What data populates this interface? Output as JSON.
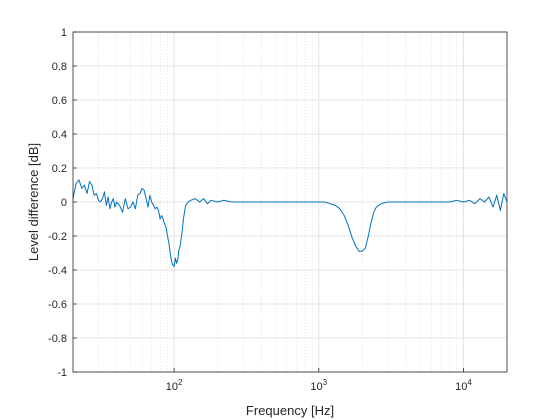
{
  "chart_data": {
    "type": "line",
    "title": "",
    "xlabel": "Frequency [Hz]",
    "ylabel": "Level difference [dB]",
    "xscale": "log",
    "xlim": [
      20,
      20000
    ],
    "ylim": [
      -1,
      1
    ],
    "grid": true,
    "minor_grid_x": true,
    "yticks": [
      {
        "value": 1,
        "label": "1"
      },
      {
        "value": 0.8,
        "label": "0.8"
      },
      {
        "value": 0.6,
        "label": "0.6"
      },
      {
        "value": 0.4,
        "label": "0.4"
      },
      {
        "value": 0.2,
        "label": "0.2"
      },
      {
        "value": 0,
        "label": "0"
      },
      {
        "value": -0.2,
        "label": "-0.2"
      },
      {
        "value": -0.4,
        "label": "-0.4"
      },
      {
        "value": -0.6,
        "label": "-0.6"
      },
      {
        "value": -0.8,
        "label": "-0.8"
      },
      {
        "value": -1,
        "label": "-1"
      }
    ],
    "xticks": [
      {
        "value": 100,
        "base": "10",
        "exp": "2"
      },
      {
        "value": 1000,
        "base": "10",
        "exp": "3"
      },
      {
        "value": 10000,
        "base": "10",
        "exp": "4"
      }
    ],
    "line_color": "#0072BD",
    "series": [
      {
        "x": [
          20,
          21,
          22,
          23,
          24,
          25,
          26,
          27,
          28,
          29,
          30,
          31,
          32,
          33,
          34,
          35,
          36,
          37,
          38,
          39,
          40,
          42,
          44,
          46,
          48,
          50,
          52,
          54,
          56,
          58,
          60,
          62,
          64,
          66,
          68,
          70,
          72,
          74,
          76,
          78,
          80,
          82,
          84,
          86,
          88,
          90,
          92,
          94,
          96,
          98,
          100,
          102,
          104,
          106,
          108,
          110,
          113,
          116,
          120,
          125,
          130,
          140,
          150,
          160,
          170,
          180,
          200,
          220,
          250,
          280,
          300,
          350,
          400,
          450,
          500,
          600,
          700,
          800,
          900,
          1000,
          1100,
          1200,
          1300,
          1400,
          1500,
          1600,
          1700,
          1800,
          1900,
          2000,
          2100,
          2200,
          2300,
          2400,
          2500,
          2700,
          3000,
          3500,
          4000,
          5000,
          6000,
          7000,
          8000,
          9000,
          10000,
          11000,
          12000,
          13000,
          14000,
          15000,
          16000,
          17000,
          18000,
          19000,
          20000
        ],
        "y": [
          0.02,
          0.11,
          0.13,
          0.08,
          0.1,
          0.05,
          0.12,
          0.1,
          0.04,
          0.05,
          0.01,
          0.0,
          0.02,
          0.06,
          -0.02,
          0.03,
          -0.04,
          0.0,
          0.02,
          -0.03,
          0.0,
          -0.02,
          -0.06,
          0.02,
          -0.04,
          -0.03,
          0.0,
          -0.04,
          0.04,
          0.05,
          0.08,
          0.07,
          0.02,
          -0.03,
          0.04,
          0.0,
          -0.02,
          -0.04,
          -0.03,
          -0.05,
          -0.1,
          -0.08,
          -0.1,
          -0.13,
          -0.15,
          -0.2,
          -0.24,
          -0.3,
          -0.35,
          -0.37,
          -0.38,
          -0.33,
          -0.36,
          -0.34,
          -0.28,
          -0.26,
          -0.19,
          -0.1,
          -0.02,
          0.0,
          0.01,
          0.02,
          0.0,
          0.02,
          -0.01,
          0.01,
          0.0,
          0.01,
          0.0,
          0.0,
          0.0,
          0.0,
          0.0,
          0.0,
          0.0,
          0.0,
          0.0,
          0.0,
          0.0,
          0.0,
          0.0,
          -0.01,
          -0.02,
          -0.04,
          -0.08,
          -0.14,
          -0.21,
          -0.26,
          -0.29,
          -0.29,
          -0.27,
          -0.2,
          -0.12,
          -0.06,
          -0.03,
          -0.01,
          0.0,
          0.0,
          0.0,
          0.0,
          0.0,
          0.0,
          0.0,
          0.01,
          0.0,
          0.01,
          -0.01,
          0.02,
          0.0,
          0.03,
          -0.03,
          0.04,
          -0.05,
          0.05,
          0.0
        ]
      }
    ]
  }
}
